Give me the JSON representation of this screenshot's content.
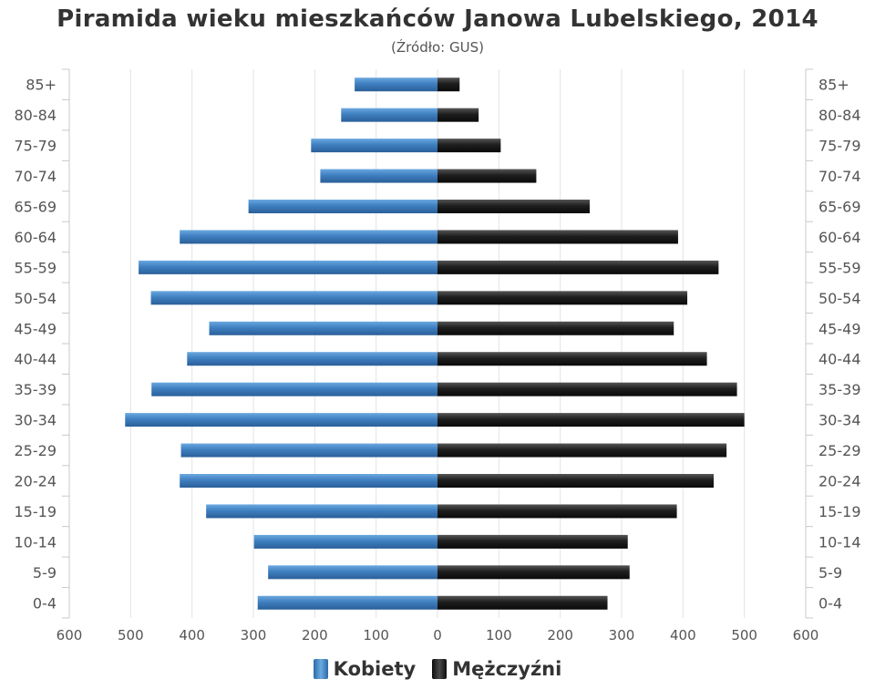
{
  "chart_data": {
    "type": "bar",
    "orientation": "horizontal",
    "title": "Piramida wieku mieszkańców Janowa Lubelskiego, 2014",
    "subtitle": "(Źródło: GUS)",
    "categories": [
      "85+",
      "80-84",
      "75-79",
      "70-74",
      "65-69",
      "60-64",
      "55-59",
      "50-54",
      "45-49",
      "40-44",
      "35-39",
      "30-34",
      "25-29",
      "20-24",
      "15-19",
      "10-14",
      "5-9",
      "0-4"
    ],
    "series": [
      {
        "name": "Kobiety",
        "color": "#4a8ac9",
        "side": "left",
        "values": [
          135,
          157,
          206,
          191,
          308,
          420,
          487,
          467,
          372,
          408,
          466,
          509,
          418,
          420,
          377,
          299,
          276,
          293
        ]
      },
      {
        "name": "Mężczyźni",
        "color": "#222222",
        "side": "right",
        "values": [
          36,
          67,
          103,
          161,
          248,
          392,
          458,
          407,
          385,
          439,
          488,
          500,
          471,
          450,
          390,
          310,
          313,
          277
        ]
      }
    ],
    "xlim": [
      -600,
      600
    ],
    "x_ticks": [
      "600",
      "500",
      "400",
      "300",
      "200",
      "100",
      "0",
      "100",
      "200",
      "300",
      "400",
      "500",
      "600"
    ],
    "grid": true,
    "legend_position": "bottom"
  }
}
